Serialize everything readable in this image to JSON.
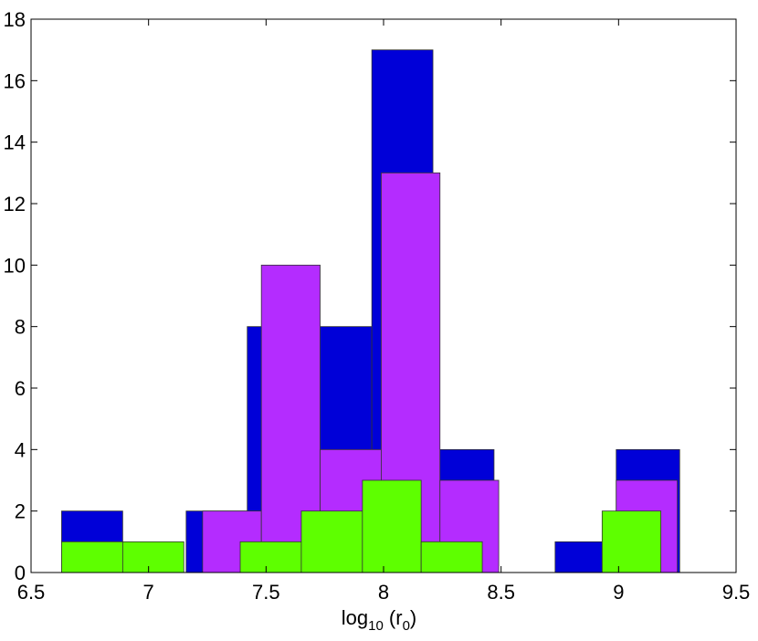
{
  "chart_data": {
    "type": "bar",
    "title": "",
    "xlabel": "log10 (r0)",
    "xlabel_parts": {
      "base": "log",
      "base_sub": "10",
      "mid": " (r",
      "mid_sub": "0",
      "end": ")"
    },
    "ylabel": "",
    "xlim": [
      6.5,
      9.5
    ],
    "ylim": [
      0,
      18
    ],
    "xticks": [
      "6.5",
      "7",
      "7.5",
      "8",
      "8.5",
      "9",
      "9.5"
    ],
    "yticks": [
      "0",
      "2",
      "4",
      "6",
      "8",
      "10",
      "12",
      "14",
      "16",
      "18"
    ],
    "grid": false,
    "legend": "none",
    "series": [
      {
        "color": "#0000d8",
        "bars": [
          {
            "x0": 6.63,
            "x1": 6.89,
            "value": 2
          },
          {
            "x0": 7.16,
            "x1": 7.42,
            "value": 2
          },
          {
            "x0": 7.42,
            "x1": 7.68,
            "value": 8
          },
          {
            "x0": 7.68,
            "x1": 7.95,
            "value": 8
          },
          {
            "x0": 7.95,
            "x1": 8.21,
            "value": 17
          },
          {
            "x0": 8.21,
            "x1": 8.47,
            "value": 4
          },
          {
            "x0": 8.73,
            "x1": 8.99,
            "value": 1
          },
          {
            "x0": 8.99,
            "x1": 9.26,
            "value": 4
          }
        ]
      },
      {
        "color": "#b42cff",
        "bars": [
          {
            "x0": 7.23,
            "x1": 7.48,
            "value": 2
          },
          {
            "x0": 7.48,
            "x1": 7.73,
            "value": 10
          },
          {
            "x0": 7.73,
            "x1": 7.99,
            "value": 4
          },
          {
            "x0": 7.99,
            "x1": 8.24,
            "value": 13
          },
          {
            "x0": 8.24,
            "x1": 8.49,
            "value": 3
          },
          {
            "x0": 8.99,
            "x1": 9.25,
            "value": 3
          }
        ]
      },
      {
        "color": "#5eff00",
        "bars": [
          {
            "x0": 6.63,
            "x1": 6.89,
            "value": 1
          },
          {
            "x0": 6.89,
            "x1": 7.15,
            "value": 1
          },
          {
            "x0": 7.39,
            "x1": 7.65,
            "value": 1
          },
          {
            "x0": 7.65,
            "x1": 7.91,
            "value": 2
          },
          {
            "x0": 7.91,
            "x1": 8.16,
            "value": 3
          },
          {
            "x0": 8.16,
            "x1": 8.42,
            "value": 1
          },
          {
            "x0": 8.93,
            "x1": 9.18,
            "value": 2
          }
        ]
      }
    ]
  }
}
